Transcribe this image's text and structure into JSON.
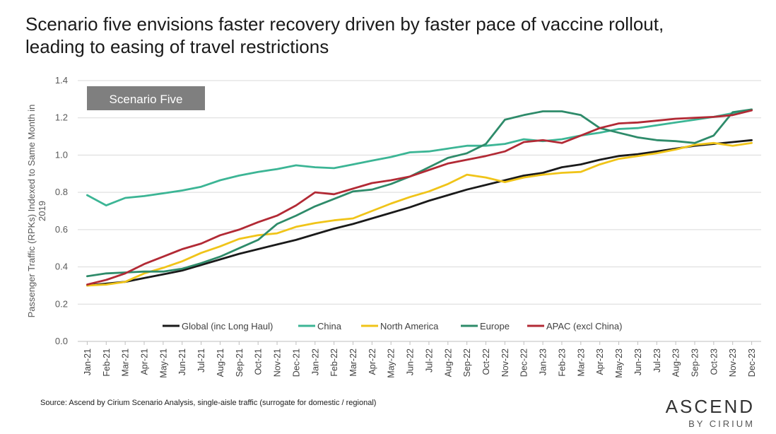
{
  "title": {
    "line1": "Scenario five envisions faster recovery driven by faster pace of vaccine rollout,",
    "line2": "leading to easing of travel restrictions"
  },
  "source": "Source: Ascend by Cirium Scenario Analysis, single-aisle traffic (surrogate for domestic / regional)",
  "logo": {
    "line1": "ASCEND",
    "line2": "BY CIRIUM"
  },
  "chart_data": {
    "type": "line",
    "annotation": "Scenario Five",
    "ylabel": "Passenger Traffic (RPKs) Indexed to Same Month in 2019",
    "ylim": [
      0,
      1.4
    ],
    "yticks": [
      0.0,
      0.2,
      0.4,
      0.6,
      0.8,
      1.0,
      1.2,
      1.4
    ],
    "grid": true,
    "legend_position": "bottom-center",
    "x": [
      "Jan-21",
      "Feb-21",
      "Mar-21",
      "Apr-21",
      "May-21",
      "Jun-21",
      "Jul-21",
      "Aug-21",
      "Sep-21",
      "Oct-21",
      "Nov-21",
      "Dec-21",
      "Jan-22",
      "Feb-22",
      "Mar-22",
      "Apr-22",
      "May-22",
      "Jun-22",
      "Jul-22",
      "Aug-22",
      "Sep-22",
      "Oct-22",
      "Nov-22",
      "Dec-22",
      "Jan-23",
      "Feb-23",
      "Mar-23",
      "Apr-23",
      "May-23",
      "Jun-23",
      "Jul-23",
      "Aug-23",
      "Sep-23",
      "Oct-23",
      "Nov-23",
      "Dec-23"
    ],
    "series": [
      {
        "name": "Global (inc Long Haul)",
        "color": "#1a1a1a",
        "values": [
          0.3,
          0.31,
          0.32,
          0.34,
          0.36,
          0.38,
          0.41,
          0.44,
          0.47,
          0.495,
          0.52,
          0.545,
          0.575,
          0.605,
          0.63,
          0.66,
          0.69,
          0.72,
          0.755,
          0.785,
          0.815,
          0.84,
          0.865,
          0.89,
          0.905,
          0.935,
          0.95,
          0.975,
          0.995,
          1.005,
          1.02,
          1.035,
          1.05,
          1.06,
          1.07,
          1.08
        ]
      },
      {
        "name": "China",
        "color": "#3cb595",
        "values": [
          0.785,
          0.73,
          0.77,
          0.78,
          0.795,
          0.81,
          0.83,
          0.865,
          0.89,
          0.91,
          0.925,
          0.945,
          0.935,
          0.93,
          0.95,
          0.97,
          0.99,
          1.015,
          1.02,
          1.035,
          1.05,
          1.05,
          1.06,
          1.085,
          1.075,
          1.085,
          1.105,
          1.12,
          1.14,
          1.145,
          1.16,
          1.175,
          1.19,
          1.205,
          1.225,
          1.245
        ]
      },
      {
        "name": "North America",
        "color": "#f0c419",
        "values": [
          0.3,
          0.305,
          0.32,
          0.365,
          0.395,
          0.43,
          0.475,
          0.51,
          0.55,
          0.57,
          0.58,
          0.615,
          0.635,
          0.65,
          0.66,
          0.7,
          0.74,
          0.775,
          0.805,
          0.845,
          0.895,
          0.88,
          0.855,
          0.88,
          0.895,
          0.905,
          0.91,
          0.95,
          0.98,
          0.995,
          1.01,
          1.03,
          1.055,
          1.065,
          1.05,
          1.065
        ]
      },
      {
        "name": "Europe",
        "color": "#2e8b6a",
        "values": [
          0.35,
          0.365,
          0.37,
          0.375,
          0.375,
          0.39,
          0.42,
          0.455,
          0.5,
          0.545,
          0.63,
          0.675,
          0.725,
          0.765,
          0.805,
          0.815,
          0.845,
          0.885,
          0.935,
          0.985,
          1.01,
          1.06,
          1.19,
          1.215,
          1.235,
          1.235,
          1.215,
          1.145,
          1.12,
          1.095,
          1.08,
          1.075,
          1.065,
          1.105,
          1.23,
          1.245
        ]
      },
      {
        "name": "APAC (excl China)",
        "color": "#b22a35",
        "values": [
          0.305,
          0.33,
          0.365,
          0.415,
          0.455,
          0.495,
          0.525,
          0.57,
          0.6,
          0.64,
          0.675,
          0.73,
          0.8,
          0.79,
          0.82,
          0.85,
          0.865,
          0.885,
          0.92,
          0.955,
          0.975,
          0.995,
          1.02,
          1.07,
          1.08,
          1.065,
          1.105,
          1.145,
          1.17,
          1.175,
          1.185,
          1.195,
          1.2,
          1.205,
          1.215,
          1.24
        ]
      }
    ]
  }
}
